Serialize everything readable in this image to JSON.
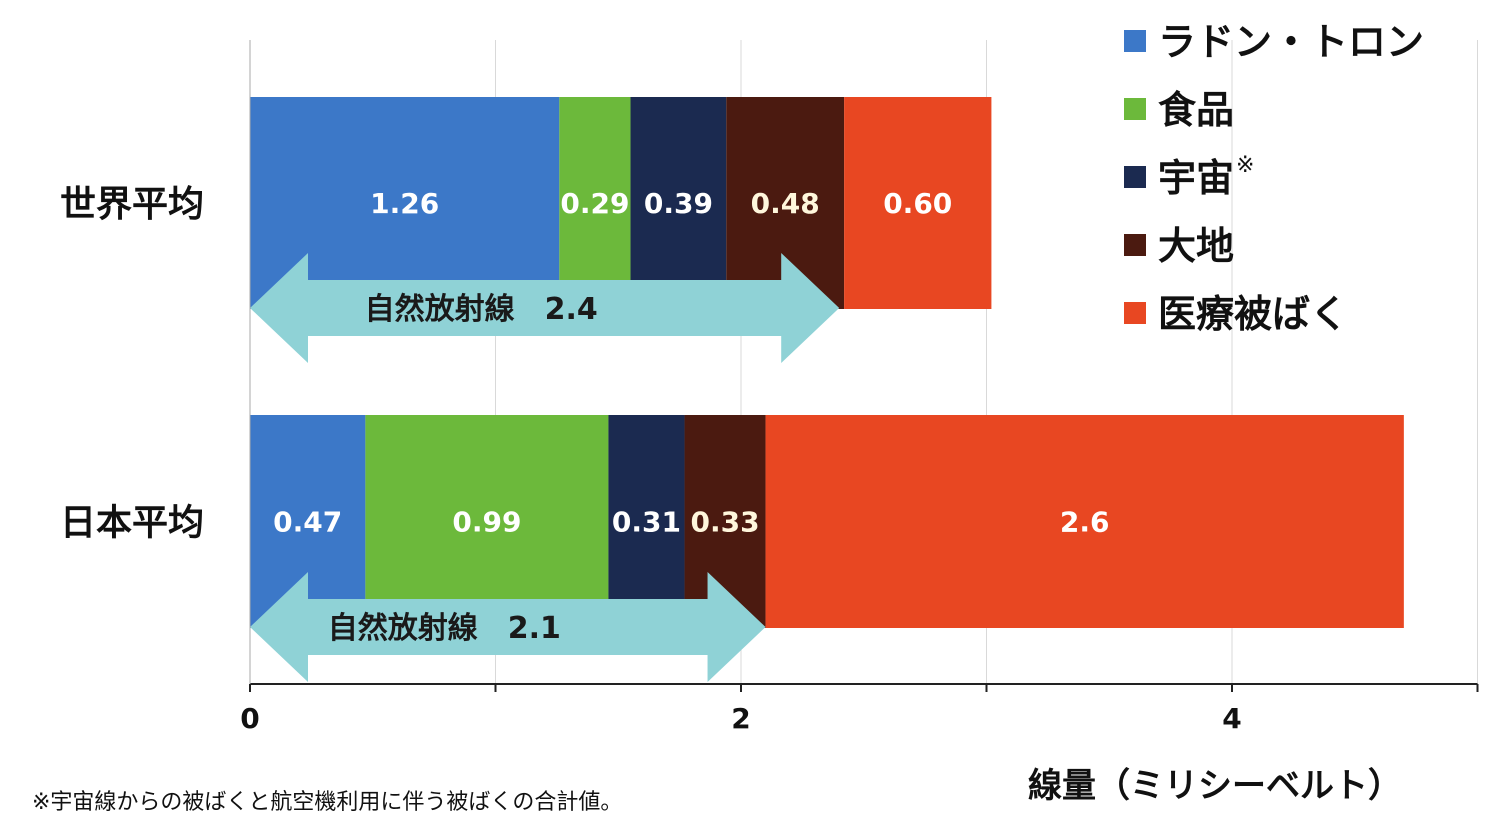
{
  "chart_data": {
    "type": "bar",
    "orientation": "horizontal",
    "stacked": true,
    "categories": [
      "世界平均",
      "日本平均"
    ],
    "series": [
      {
        "name": "ラドン・トロン",
        "color": "#3c78c8",
        "values": [
          1.26,
          0.47
        ],
        "labels": [
          "1.26",
          "0.47"
        ],
        "label_color": "#ffffff"
      },
      {
        "name": "食品",
        "color": "#6cb93b",
        "values": [
          0.29,
          0.99
        ],
        "labels": [
          "0.29",
          "0.99"
        ],
        "label_color": "#ffffff"
      },
      {
        "name": "宇宙",
        "name_suffix": "※",
        "color": "#1b2a50",
        "values": [
          0.39,
          0.31
        ],
        "labels": [
          "0.39",
          "0.31"
        ],
        "label_color": "#ffffff"
      },
      {
        "name": "大地",
        "color": "#4b1a10",
        "values": [
          0.48,
          0.33
        ],
        "labels": [
          "0.48",
          "0.33"
        ],
        "label_color": "#fff7dc"
      },
      {
        "name": "医療被ばく",
        "color": "#e84722",
        "values": [
          0.6,
          2.6
        ],
        "labels": [
          "0.60",
          "2.6"
        ],
        "label_color": "#ffffff"
      }
    ],
    "annotations": [
      {
        "category": "世界平均",
        "text": "自然放射線",
        "value_text": "2.4",
        "from": 0,
        "to": 2.4
      },
      {
        "category": "日本平均",
        "text": "自然放射線",
        "value_text": "2.1",
        "from": 0,
        "to": 2.1
      }
    ],
    "arrow_color": "#8fd2d6",
    "xlim": [
      0,
      5
    ],
    "xticks": [
      0,
      2,
      4
    ],
    "minor_ticks": [
      1,
      3,
      5
    ],
    "xlabel": "線量（ミリシーベルト）",
    "grid": true,
    "legend_position": "top-right",
    "footnote": "※宇宙線からの被ばくと航空機利用に伴う被ばくの合計値。"
  }
}
